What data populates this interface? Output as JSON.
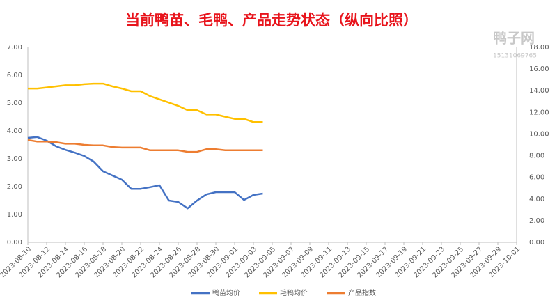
{
  "chart_data": {
    "type": "line",
    "title": "当前鸭苗、毛鸭、产品走势状态（纵向比照）",
    "watermark": {
      "name": "鸭子网",
      "phone": "15131069765"
    },
    "x": [
      "2023-08-10",
      "2023-08-11",
      "2023-08-12",
      "2023-08-13",
      "2023-08-14",
      "2023-08-15",
      "2023-08-16",
      "2023-08-17",
      "2023-08-18",
      "2023-08-19",
      "2023-08-20",
      "2023-08-21",
      "2023-08-22",
      "2023-08-23",
      "2023-08-24",
      "2023-08-25",
      "2023-08-26",
      "2023-08-27",
      "2023-08-28",
      "2023-08-29",
      "2023-08-30",
      "2023-08-31",
      "2023-09-01",
      "2023-09-02",
      "2023-09-03",
      "2023-09-04"
    ],
    "xlim": [
      "2023-08-10",
      "2023-10-01"
    ],
    "xticks": [
      "2023-08-10",
      "2023-08-12",
      "2023-08-14",
      "2023-08-16",
      "2023-08-18",
      "2023-08-20",
      "2023-08-22",
      "2023-08-24",
      "2023-08-26",
      "2023-08-28",
      "2023-08-30",
      "2023-09-01",
      "2023-09-03",
      "2023-09-05",
      "2023-09-07",
      "2023-09-09",
      "2023-09-11",
      "2023-09-13",
      "2023-09-15",
      "2023-09-17",
      "2023-09-19",
      "2023-09-21",
      "2023-09-23",
      "2023-09-25",
      "2023-09-27",
      "2023-09-29",
      "2023-10-01"
    ],
    "ylim": [
      0,
      7
    ],
    "yticks": [
      {
        "value": 0,
        "label": "0.00"
      },
      {
        "value": 1,
        "label": "1.00"
      },
      {
        "value": 2,
        "label": "2.00"
      },
      {
        "value": 3,
        "label": "3.00"
      },
      {
        "value": 4,
        "label": "4.00"
      },
      {
        "value": 5,
        "label": "5.00"
      },
      {
        "value": 6,
        "label": "6.00"
      },
      {
        "value": 7,
        "label": "7.00"
      }
    ],
    "y2lim": [
      0,
      18
    ],
    "y2ticks": [
      {
        "value": 0,
        "label": "0.00"
      },
      {
        "value": 2,
        "label": "2.00"
      },
      {
        "value": 4,
        "label": "4.00"
      },
      {
        "value": 6,
        "label": "6.00"
      },
      {
        "value": 8,
        "label": "8.00"
      },
      {
        "value": 10,
        "label": "10.00"
      },
      {
        "value": 12,
        "label": "12.00"
      },
      {
        "value": 14,
        "label": "14.00"
      },
      {
        "value": 16,
        "label": "16.00"
      },
      {
        "value": 18,
        "label": "18.00"
      }
    ],
    "legend": "bottom",
    "series": [
      {
        "name": "鸭苗均价",
        "color": "#4472c4",
        "values": [
          3.75,
          3.78,
          3.65,
          3.45,
          3.32,
          3.22,
          3.1,
          2.9,
          2.55,
          2.4,
          2.25,
          1.92,
          1.92,
          1.98,
          2.05,
          1.5,
          1.45,
          1.22,
          1.5,
          1.72,
          1.8,
          1.8,
          1.8,
          1.52,
          1.7,
          1.75
        ]
      },
      {
        "name": "毛鸭均价",
        "color": "#ffc000",
        "axis": "y2",
        "values": [
          14.2,
          14.2,
          14.3,
          14.4,
          14.5,
          14.5,
          14.6,
          14.65,
          14.65,
          14.4,
          14.2,
          13.95,
          13.95,
          13.5,
          13.2,
          12.9,
          12.6,
          12.2,
          12.2,
          11.8,
          11.8,
          11.6,
          11.4,
          11.4,
          11.1,
          11.1
        ]
      },
      {
        "name": "产品指数",
        "color": "#ed7d31",
        "axis": "y2",
        "values": [
          9.45,
          9.3,
          9.3,
          9.25,
          9.1,
          9.1,
          9.0,
          8.95,
          8.95,
          8.8,
          8.75,
          8.75,
          8.75,
          8.5,
          8.5,
          8.5,
          8.5,
          8.35,
          8.35,
          8.6,
          8.6,
          8.5,
          8.5,
          8.5,
          8.5,
          8.5
        ]
      }
    ]
  }
}
